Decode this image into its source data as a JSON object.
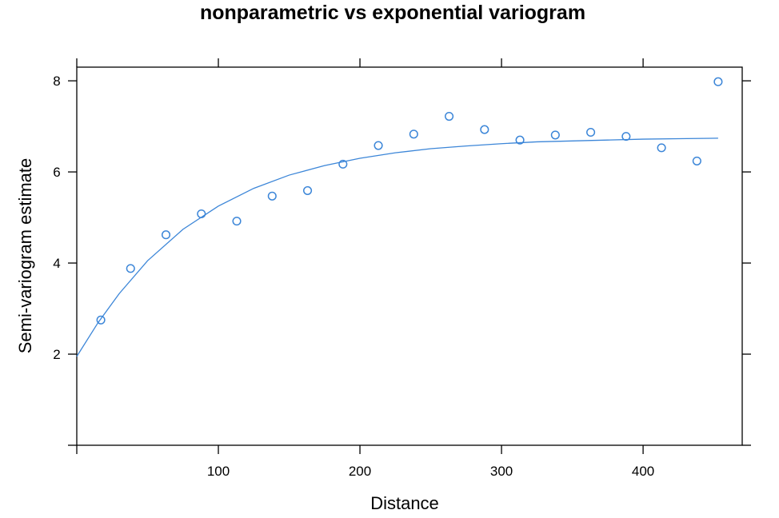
{
  "chart_data": {
    "type": "scatter",
    "title": "nonparametric vs exponential variogram",
    "xlabel": "Distance",
    "ylabel": "Semi-variogram estimate",
    "xlim": [
      0,
      470
    ],
    "ylim": [
      0,
      8.3
    ],
    "x_ticks": [
      100,
      200,
      300,
      400
    ],
    "y_ticks": [
      2,
      4,
      6,
      8
    ],
    "grid": false,
    "legend": "none",
    "series": [
      {
        "type": "scatter",
        "x": [
          17,
          38,
          63,
          88,
          113,
          138,
          163,
          188,
          213,
          238,
          263,
          288,
          313,
          338,
          363,
          388,
          413,
          438,
          453
        ],
        "y": [
          2.75,
          3.88,
          4.62,
          5.08,
          4.92,
          5.47,
          5.59,
          6.17,
          6.58,
          6.83,
          7.22,
          6.93,
          6.7,
          6.81,
          6.87,
          6.78,
          6.53,
          6.24,
          7.98
        ]
      },
      {
        "type": "line",
        "model": "exponential",
        "x": [
          0,
          15,
          30,
          50,
          75,
          100,
          125,
          150,
          175,
          200,
          225,
          250,
          275,
          300,
          325,
          350,
          375,
          400,
          425,
          453
        ],
        "y": [
          1.95,
          2.69,
          3.33,
          4.05,
          4.74,
          5.25,
          5.64,
          5.93,
          6.14,
          6.3,
          6.42,
          6.51,
          6.57,
          6.62,
          6.66,
          6.68,
          6.7,
          6.72,
          6.73,
          6.74
        ]
      }
    ]
  },
  "colors": {
    "series": "#3c86d8",
    "axis": "#000000"
  }
}
